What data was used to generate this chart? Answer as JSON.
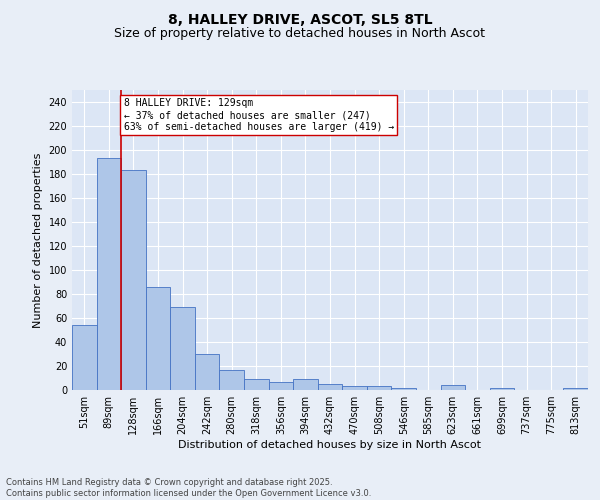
{
  "title1": "8, HALLEY DRIVE, ASCOT, SL5 8TL",
  "title2": "Size of property relative to detached houses in North Ascot",
  "xlabel": "Distribution of detached houses by size in North Ascot",
  "ylabel": "Number of detached properties",
  "categories": [
    "51sqm",
    "89sqm",
    "128sqm",
    "166sqm",
    "204sqm",
    "242sqm",
    "280sqm",
    "318sqm",
    "356sqm",
    "394sqm",
    "432sqm",
    "470sqm",
    "508sqm",
    "546sqm",
    "585sqm",
    "623sqm",
    "661sqm",
    "699sqm",
    "737sqm",
    "775sqm",
    "813sqm"
  ],
  "values": [
    54,
    193,
    183,
    86,
    69,
    30,
    17,
    9,
    7,
    9,
    5,
    3,
    3,
    2,
    0,
    4,
    0,
    2,
    0,
    0,
    2
  ],
  "bar_color": "#aec6e8",
  "bar_edge_color": "#4472c4",
  "red_line_index": 2,
  "ylim": [
    0,
    250
  ],
  "yticks": [
    0,
    20,
    40,
    60,
    80,
    100,
    120,
    140,
    160,
    180,
    200,
    220,
    240
  ],
  "annotation_title": "8 HALLEY DRIVE: 129sqm",
  "annotation_line1": "← 37% of detached houses are smaller (247)",
  "annotation_line2": "63% of semi-detached houses are larger (419) →",
  "annotation_box_color": "#ffffff",
  "annotation_box_edge": "#cc0000",
  "background_color": "#e8eef7",
  "plot_bg_color": "#dce6f5",
  "footer1": "Contains HM Land Registry data © Crown copyright and database right 2025.",
  "footer2": "Contains public sector information licensed under the Open Government Licence v3.0.",
  "title_fontsize": 10,
  "subtitle_fontsize": 9,
  "tick_fontsize": 7,
  "ylabel_fontsize": 8,
  "xlabel_fontsize": 8,
  "annotation_fontsize": 7,
  "footer_fontsize": 6
}
